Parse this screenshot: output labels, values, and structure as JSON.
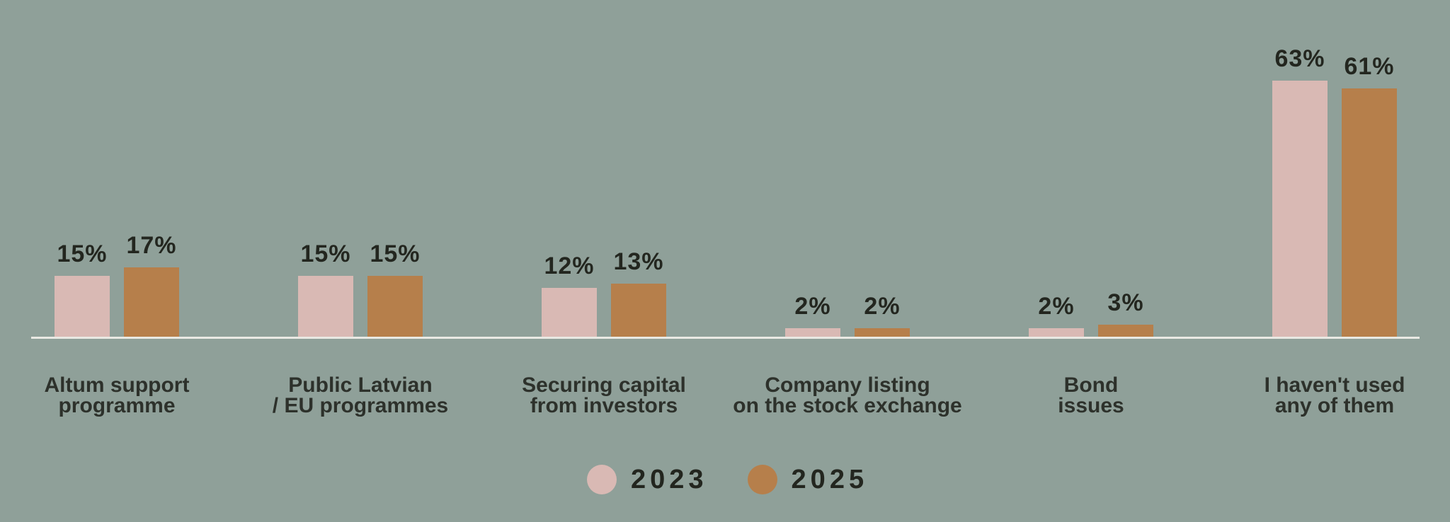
{
  "chart_data": {
    "type": "bar",
    "title": "",
    "xlabel": "",
    "ylabel": "",
    "value_suffix": "%",
    "ylim": [
      0,
      70
    ],
    "grid": false,
    "legend_position": "bottom-center",
    "categories": [
      {
        "lines": [
          "Altum support",
          "programme"
        ]
      },
      {
        "lines": [
          "Public Latvian",
          "/ EU programmes"
        ]
      },
      {
        "lines": [
          "Securing capital",
          "from investors"
        ]
      },
      {
        "lines": [
          "Company listing",
          "on the stock exchange"
        ]
      },
      {
        "lines": [
          "Bond",
          "issues"
        ]
      },
      {
        "lines": [
          "I haven't used",
          "any of them"
        ]
      }
    ],
    "series": [
      {
        "name": "2023",
        "color": "#D9B9B4",
        "values": [
          15,
          15,
          12,
          2,
          2,
          63
        ]
      },
      {
        "name": "2025",
        "color": "#B67F4B",
        "values": [
          17,
          15,
          13,
          2,
          3,
          61
        ]
      }
    ]
  },
  "legend": {
    "items": [
      {
        "label": "2023",
        "swatch_color": "#D9B9B4"
      },
      {
        "label": "2025",
        "swatch_color": "#B67F4B"
      }
    ]
  },
  "style": {
    "background": "#8FA099",
    "axis_line_color": "#E9E9E3",
    "value_text_color": "#23261F",
    "category_text_color": "#2D312B",
    "legend_text_color": "#23261F"
  }
}
